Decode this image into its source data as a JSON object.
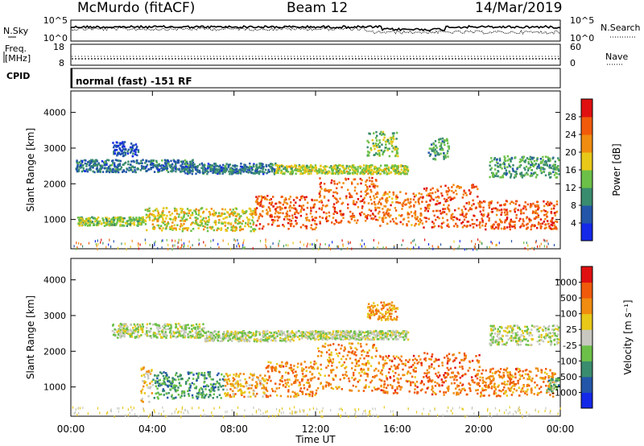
{
  "header": {
    "station": "McMurdo (fitACF)",
    "beam": "Beam 12",
    "date": "14/Mar/2019"
  },
  "noise_panel": {
    "left_label": "N.Sky",
    "right_label": "N.Search",
    "left_ticks": [
      "10^5",
      "10^0"
    ],
    "right_ticks": [
      "10^5",
      "10^0"
    ]
  },
  "freq_panel": {
    "left_label_1": "Freq.",
    "left_label_2": "[MHz]",
    "right_label": "Nave",
    "left_ticks": [
      "18",
      "8"
    ],
    "right_ticks": [
      "60",
      "0"
    ]
  },
  "cpid_panel": {
    "label": "CPID",
    "text": "normal (fast) -151 RF"
  },
  "x_axis": {
    "label": "Time UT",
    "tick_labels": [
      "00:00",
      "04:00",
      "08:00",
      "12:00",
      "16:00",
      "20:00",
      "00:00"
    ]
  },
  "chart_data": [
    {
      "type": "heatmap",
      "title": "",
      "xlabel": "Time UT",
      "ylabel": "Slant Range [km]",
      "x_range_hours": [
        0,
        24
      ],
      "ylim": [
        180,
        4600
      ],
      "y_ticks": [
        "1000",
        "2000",
        "3000",
        "4000"
      ],
      "colorbar_label": "Power [dB]",
      "colorbar_ticks": [
        "4",
        "8",
        "12",
        "16",
        "20",
        "24",
        "28"
      ],
      "colorbar_range": [
        0,
        32
      ],
      "colors": [
        "#1428e8",
        "#2356a8",
        "#3a8c6e",
        "#6cc048",
        "#e8c818",
        "#f08c10",
        "#f05a0a",
        "#e01010"
      ],
      "bands": [
        {
          "t0": 0.3,
          "t1": 3.6,
          "r0": 850,
          "r1": 1100,
          "level": 0.45
        },
        {
          "t0": 3.6,
          "t1": 9.0,
          "r0": 700,
          "r1": 1350,
          "level": 0.55
        },
        {
          "t0": 9.0,
          "t1": 12.0,
          "r0": 750,
          "r1": 1700,
          "level": 0.78
        },
        {
          "t0": 12.0,
          "t1": 15.0,
          "r0": 900,
          "r1": 2200,
          "level": 0.8
        },
        {
          "t0": 15.0,
          "t1": 17.2,
          "r0": 850,
          "r1": 1800,
          "level": 0.75
        },
        {
          "t0": 17.2,
          "t1": 20.0,
          "r0": 800,
          "r1": 2000,
          "level": 0.82
        },
        {
          "t0": 20.0,
          "t1": 23.8,
          "r0": 750,
          "r1": 1550,
          "level": 0.82
        },
        {
          "t0": 0.2,
          "t1": 6.0,
          "r0": 2350,
          "r1": 2700,
          "level": 0.25
        },
        {
          "t0": 5.5,
          "t1": 10.0,
          "r0": 2300,
          "r1": 2600,
          "level": 0.25
        },
        {
          "t0": 10.0,
          "t1": 16.5,
          "r0": 2300,
          "r1": 2550,
          "level": 0.5
        },
        {
          "t0": 20.5,
          "t1": 23.9,
          "r0": 2200,
          "r1": 2800,
          "level": 0.35
        },
        {
          "t0": 2.0,
          "t1": 3.3,
          "r0": 2800,
          "r1": 3200,
          "level": 0.15
        },
        {
          "t0": 14.5,
          "t1": 16.0,
          "r0": 2800,
          "r1": 3500,
          "level": 0.45
        },
        {
          "t0": 17.5,
          "t1": 18.5,
          "r0": 2700,
          "r1": 3300,
          "level": 0.35
        }
      ]
    },
    {
      "type": "heatmap",
      "title": "",
      "xlabel": "Time UT",
      "ylabel": "Slant Range [km]",
      "x_range_hours": [
        0,
        24
      ],
      "ylim": [
        180,
        4600
      ],
      "y_ticks": [
        "1000",
        "2000",
        "3000",
        "4000"
      ],
      "colorbar_label": "Velocity [m s⁻¹]",
      "colorbar_ticks": [
        "1000",
        "500",
        "100",
        "25",
        "-25",
        "-100",
        "-500",
        "-1000"
      ],
      "colorbar_range": [
        -1200,
        1200
      ],
      "colors": [
        "#1428e8",
        "#2356a8",
        "#3a8c6e",
        "#6cc048",
        "#c8c8c0",
        "#e8c818",
        "#f08c10",
        "#f05a0a",
        "#e01010"
      ],
      "bands": [
        {
          "t0": 3.4,
          "t1": 4.0,
          "r0": 600,
          "r1": 1600,
          "level": 0.62
        },
        {
          "t0": 4.0,
          "t1": 7.5,
          "r0": 700,
          "r1": 1450,
          "level": 0.3
        },
        {
          "t0": 7.5,
          "t1": 9.5,
          "r0": 750,
          "r1": 1400,
          "level": 0.65
        },
        {
          "t0": 9.5,
          "t1": 12.0,
          "r0": 750,
          "r1": 1750,
          "level": 0.75
        },
        {
          "t0": 12.0,
          "t1": 15.0,
          "r0": 900,
          "r1": 2250,
          "level": 0.75
        },
        {
          "t0": 15.0,
          "t1": 17.2,
          "r0": 850,
          "r1": 1900,
          "level": 0.78
        },
        {
          "t0": 17.2,
          "t1": 20.0,
          "r0": 800,
          "r1": 2000,
          "level": 0.8
        },
        {
          "t0": 20.0,
          "t1": 23.7,
          "r0": 750,
          "r1": 1550,
          "level": 0.75
        },
        {
          "t0": 23.3,
          "t1": 23.9,
          "r0": 900,
          "r1": 1300,
          "level": 0.35
        },
        {
          "t0": 2.0,
          "t1": 6.5,
          "r0": 2400,
          "r1": 2800,
          "level": 0.48
        },
        {
          "t0": 6.5,
          "t1": 11.0,
          "r0": 2300,
          "r1": 2600,
          "level": 0.48
        },
        {
          "t0": 11.0,
          "t1": 16.5,
          "r0": 2350,
          "r1": 2600,
          "level": 0.48
        },
        {
          "t0": 20.5,
          "t1": 23.9,
          "r0": 2200,
          "r1": 2750,
          "level": 0.48
        },
        {
          "t0": 14.5,
          "t1": 16.0,
          "r0": 2900,
          "r1": 3400,
          "level": 0.7
        }
      ]
    }
  ]
}
